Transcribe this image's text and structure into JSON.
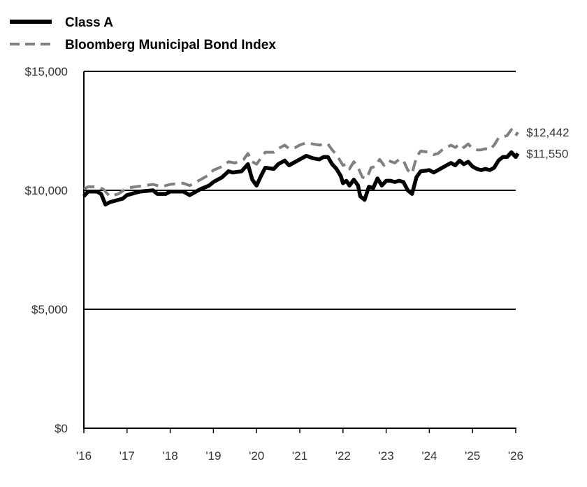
{
  "chart_data": {
    "type": "line",
    "title": "",
    "xlabel": "",
    "ylabel": "",
    "ylim": [
      0,
      15000
    ],
    "xlim": [
      2016,
      2026
    ],
    "grid": "horizontal",
    "legend_position": "top-left",
    "x_ticks": [
      "'16",
      "'17",
      "'18",
      "'19",
      "'20",
      "'21",
      "'22",
      "'23",
      "'24",
      "'25",
      "'26"
    ],
    "y_ticks": [
      {
        "value": 0,
        "label": "$0"
      },
      {
        "value": 5000,
        "label": "$5,000"
      },
      {
        "value": 10000,
        "label": "$10,000"
      },
      {
        "value": 15000,
        "label": "$15,000"
      }
    ],
    "series": [
      {
        "name": "Class A",
        "color": "#000000",
        "style": "solid",
        "end_label": "$11,550",
        "points": [
          [
            2016.0,
            9750
          ],
          [
            2016.1,
            9950
          ],
          [
            2016.3,
            9950
          ],
          [
            2016.4,
            9850
          ],
          [
            2016.5,
            9400
          ],
          [
            2016.6,
            9500
          ],
          [
            2016.8,
            9600
          ],
          [
            2016.9,
            9650
          ],
          [
            2017.0,
            9800
          ],
          [
            2017.3,
            9950
          ],
          [
            2017.6,
            10000
          ],
          [
            2017.7,
            9850
          ],
          [
            2017.9,
            9850
          ],
          [
            2018.0,
            9950
          ],
          [
            2018.3,
            9950
          ],
          [
            2018.45,
            9800
          ],
          [
            2018.7,
            10050
          ],
          [
            2018.9,
            10200
          ],
          [
            2019.0,
            10350
          ],
          [
            2019.2,
            10550
          ],
          [
            2019.35,
            10800
          ],
          [
            2019.45,
            10750
          ],
          [
            2019.65,
            10800
          ],
          [
            2019.8,
            11100
          ],
          [
            2019.9,
            10450
          ],
          [
            2020.0,
            10200
          ],
          [
            2020.1,
            10600
          ],
          [
            2020.2,
            10950
          ],
          [
            2020.4,
            10900
          ],
          [
            2020.5,
            11100
          ],
          [
            2020.65,
            11250
          ],
          [
            2020.75,
            11050
          ],
          [
            2020.9,
            11200
          ],
          [
            2021.0,
            11300
          ],
          [
            2021.15,
            11450
          ],
          [
            2021.3,
            11350
          ],
          [
            2021.45,
            11300
          ],
          [
            2021.55,
            11400
          ],
          [
            2021.65,
            11400
          ],
          [
            2021.75,
            11100
          ],
          [
            2021.85,
            10900
          ],
          [
            2021.95,
            10600
          ],
          [
            2022.0,
            10300
          ],
          [
            2022.08,
            10400
          ],
          [
            2022.15,
            10200
          ],
          [
            2022.25,
            10450
          ],
          [
            2022.35,
            10200
          ],
          [
            2022.4,
            9750
          ],
          [
            2022.5,
            9600
          ],
          [
            2022.6,
            10150
          ],
          [
            2022.7,
            10100
          ],
          [
            2022.8,
            10500
          ],
          [
            2022.9,
            10200
          ],
          [
            2023.0,
            10400
          ],
          [
            2023.1,
            10400
          ],
          [
            2023.2,
            10350
          ],
          [
            2023.3,
            10400
          ],
          [
            2023.4,
            10350
          ],
          [
            2023.5,
            10000
          ],
          [
            2023.6,
            9850
          ],
          [
            2023.7,
            10550
          ],
          [
            2023.8,
            10800
          ],
          [
            2024.0,
            10850
          ],
          [
            2024.1,
            10750
          ],
          [
            2024.2,
            10850
          ],
          [
            2024.3,
            10950
          ],
          [
            2024.5,
            11150
          ],
          [
            2024.6,
            11050
          ],
          [
            2024.7,
            11250
          ],
          [
            2024.8,
            11100
          ],
          [
            2024.9,
            11200
          ],
          [
            2025.0,
            11000
          ],
          [
            2025.1,
            10900
          ],
          [
            2025.2,
            10850
          ],
          [
            2025.3,
            10900
          ],
          [
            2025.4,
            10850
          ],
          [
            2025.5,
            10950
          ],
          [
            2025.6,
            11250
          ],
          [
            2025.7,
            11400
          ],
          [
            2025.8,
            11400
          ],
          [
            2025.9,
            11600
          ],
          [
            2026.0,
            11400
          ],
          [
            2026.1,
            11550
          ]
        ]
      },
      {
        "name": "Bloomberg Municipal Bond Index",
        "color": "#808080",
        "style": "dashed",
        "end_label": "$12,442",
        "points": [
          [
            2016.0,
            10050
          ],
          [
            2016.1,
            10150
          ],
          [
            2016.3,
            10150
          ],
          [
            2016.45,
            10050
          ],
          [
            2016.6,
            9750
          ],
          [
            2016.8,
            9850
          ],
          [
            2017.0,
            10100
          ],
          [
            2017.2,
            10150
          ],
          [
            2017.4,
            10200
          ],
          [
            2017.6,
            10250
          ],
          [
            2017.8,
            10150
          ],
          [
            2018.0,
            10250
          ],
          [
            2018.3,
            10300
          ],
          [
            2018.45,
            10200
          ],
          [
            2018.7,
            10450
          ],
          [
            2018.9,
            10650
          ],
          [
            2019.0,
            10850
          ],
          [
            2019.2,
            11000
          ],
          [
            2019.35,
            11200
          ],
          [
            2019.5,
            11150
          ],
          [
            2019.7,
            11300
          ],
          [
            2019.8,
            11550
          ],
          [
            2019.9,
            11200
          ],
          [
            2020.0,
            11100
          ],
          [
            2020.1,
            11350
          ],
          [
            2020.2,
            11600
          ],
          [
            2020.4,
            11600
          ],
          [
            2020.5,
            11750
          ],
          [
            2020.65,
            11900
          ],
          [
            2020.75,
            11750
          ],
          [
            2020.9,
            11800
          ],
          [
            2021.0,
            11900
          ],
          [
            2021.15,
            12000
          ],
          [
            2021.3,
            11950
          ],
          [
            2021.45,
            11900
          ],
          [
            2021.55,
            11950
          ],
          [
            2021.65,
            11950
          ],
          [
            2021.75,
            11700
          ],
          [
            2021.85,
            11500
          ],
          [
            2021.95,
            11200
          ],
          [
            2022.0,
            11050
          ],
          [
            2022.08,
            11100
          ],
          [
            2022.15,
            10900
          ],
          [
            2022.25,
            11200
          ],
          [
            2022.35,
            10950
          ],
          [
            2022.45,
            10550
          ],
          [
            2022.55,
            10500
          ],
          [
            2022.65,
            10950
          ],
          [
            2022.75,
            11000
          ],
          [
            2022.85,
            11300
          ],
          [
            2022.95,
            11050
          ],
          [
            2023.05,
            11250
          ],
          [
            2023.2,
            11150
          ],
          [
            2023.3,
            11300
          ],
          [
            2023.4,
            11250
          ],
          [
            2023.5,
            10850
          ],
          [
            2023.6,
            10700
          ],
          [
            2023.7,
            11400
          ],
          [
            2023.8,
            11650
          ],
          [
            2024.0,
            11600
          ],
          [
            2024.1,
            11500
          ],
          [
            2024.2,
            11550
          ],
          [
            2024.3,
            11700
          ],
          [
            2024.5,
            11900
          ],
          [
            2024.6,
            11800
          ],
          [
            2024.7,
            11950
          ],
          [
            2024.8,
            11800
          ],
          [
            2024.9,
            11950
          ],
          [
            2025.0,
            11750
          ],
          [
            2025.1,
            11700
          ],
          [
            2025.2,
            11700
          ],
          [
            2025.3,
            11750
          ],
          [
            2025.4,
            11700
          ],
          [
            2025.5,
            11900
          ],
          [
            2025.6,
            12200
          ],
          [
            2025.7,
            12250
          ],
          [
            2025.8,
            12300
          ],
          [
            2025.9,
            12550
          ],
          [
            2026.0,
            12300
          ],
          [
            2026.1,
            12442
          ]
        ]
      }
    ]
  }
}
